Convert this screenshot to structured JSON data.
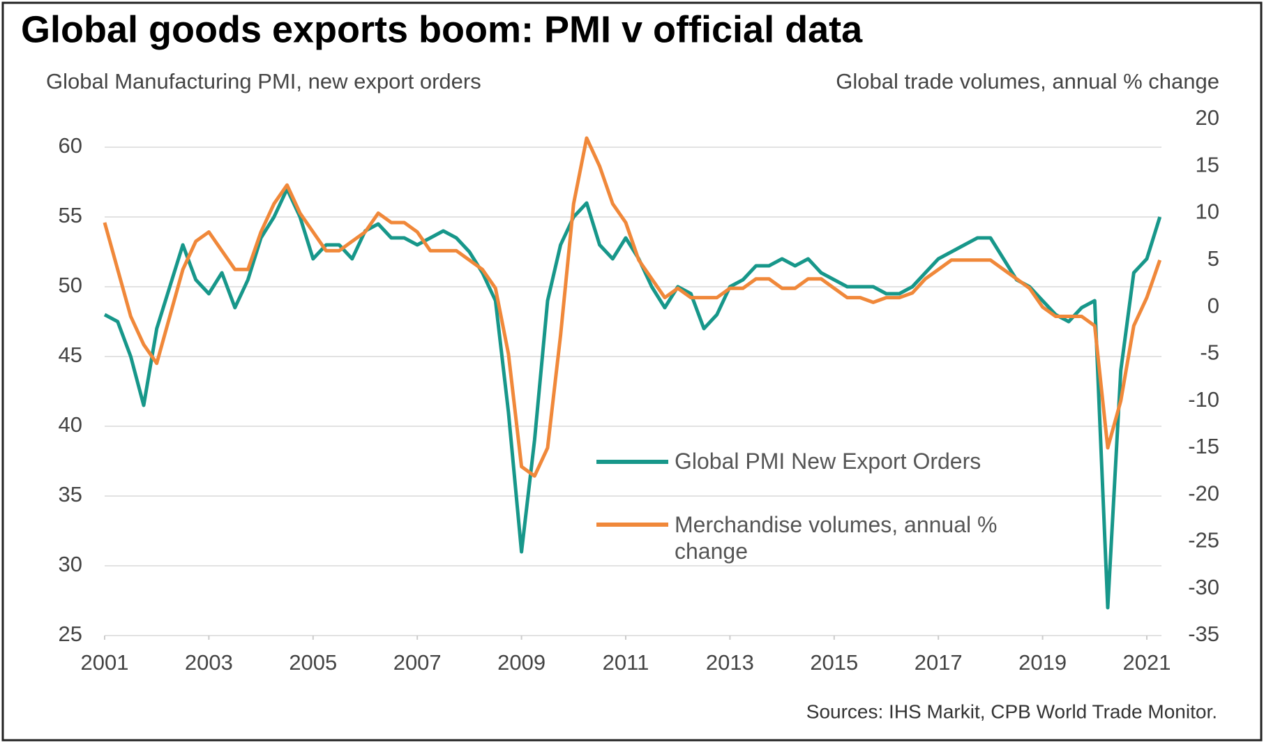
{
  "chart_data": {
    "type": "line",
    "title": "Global goods exports boom: PMI v official data",
    "y_label": "Global Manufacturing PMI, new export orders",
    "y2_label": "Global trade volumes,  annual % change",
    "source": "Sources: IHS Markit,  CPB World Trade Monitor.",
    "x": [
      2001,
      2001.25,
      2001.5,
      2001.75,
      2002,
      2002.25,
      2002.5,
      2002.75,
      2003,
      2003.25,
      2003.5,
      2003.75,
      2004,
      2004.25,
      2004.5,
      2004.75,
      2005,
      2005.25,
      2005.5,
      2005.75,
      2006,
      2006.25,
      2006.5,
      2006.75,
      2007,
      2007.25,
      2007.5,
      2007.75,
      2008,
      2008.25,
      2008.5,
      2008.75,
      2009,
      2009.25,
      2009.5,
      2009.75,
      2010,
      2010.25,
      2010.5,
      2010.75,
      2011,
      2011.25,
      2011.5,
      2011.75,
      2012,
      2012.25,
      2012.5,
      2012.75,
      2013,
      2013.25,
      2013.5,
      2013.75,
      2014,
      2014.25,
      2014.5,
      2014.75,
      2015,
      2015.25,
      2015.5,
      2015.75,
      2016,
      2016.25,
      2016.5,
      2016.75,
      2017,
      2017.25,
      2017.5,
      2017.75,
      2018,
      2018.25,
      2018.5,
      2018.75,
      2019,
      2019.25,
      2019.5,
      2019.75,
      2020,
      2020.25,
      2020.5,
      2020.75,
      2021,
      2021.25
    ],
    "xlim": [
      2001,
      2021.3
    ],
    "xticks": [
      2001,
      2003,
      2005,
      2007,
      2009,
      2011,
      2013,
      2015,
      2017,
      2019,
      2021
    ],
    "ylim": [
      25,
      62
    ],
    "yticks": [
      25,
      30,
      35,
      40,
      45,
      50,
      55,
      60
    ],
    "y2lim": [
      -35,
      20
    ],
    "y2ticks": [
      -35,
      -30,
      -25,
      -20,
      -15,
      -10,
      -5,
      0,
      5,
      10,
      15,
      20
    ],
    "grid": true,
    "series": [
      {
        "name": "Global PMI New Export Orders",
        "color": "#17978a",
        "axis": "y",
        "values": [
          48,
          47.5,
          45,
          41.5,
          47,
          50,
          53,
          50.5,
          49.5,
          51,
          48.5,
          50.5,
          53.5,
          55,
          57,
          55,
          52,
          53,
          53,
          52,
          54,
          54.5,
          53.5,
          53.5,
          53,
          53.5,
          54,
          53.5,
          52.5,
          51,
          49,
          41,
          31,
          39,
          49,
          53,
          55,
          56,
          53,
          52,
          53.5,
          52,
          50,
          48.5,
          50,
          49.5,
          47,
          48,
          50,
          50.5,
          51.5,
          51.5,
          52,
          51.5,
          52,
          51,
          50.5,
          50,
          50,
          50,
          49.5,
          49.5,
          50,
          51,
          52,
          52.5,
          53,
          53.5,
          53.5,
          52,
          50.5,
          50,
          49,
          48,
          47.5,
          48.5,
          49,
          27,
          44,
          51,
          52,
          55
        ]
      },
      {
        "name": "Merchandise volumes, annual % change",
        "color": "#f0883a",
        "axis": "y2",
        "values": [
          9,
          4,
          -1,
          -4,
          -6,
          -1,
          4,
          7,
          8,
          6,
          4,
          4,
          8,
          11,
          13,
          10,
          8,
          6,
          6,
          7,
          8,
          10,
          9,
          9,
          8,
          6,
          6,
          6,
          5,
          4,
          2,
          -5,
          -17,
          -18,
          -15,
          -3,
          11,
          18,
          15,
          11,
          9,
          5,
          3,
          1,
          2,
          1,
          1,
          1,
          2,
          2,
          3,
          3,
          2,
          2,
          3,
          3,
          2,
          1,
          1,
          0.5,
          1,
          1,
          1.5,
          3,
          4,
          5,
          5,
          5,
          5,
          4,
          3,
          2,
          0,
          -1,
          -1,
          -1,
          -2,
          -15,
          -10,
          -2,
          1,
          5
        ]
      }
    ]
  }
}
